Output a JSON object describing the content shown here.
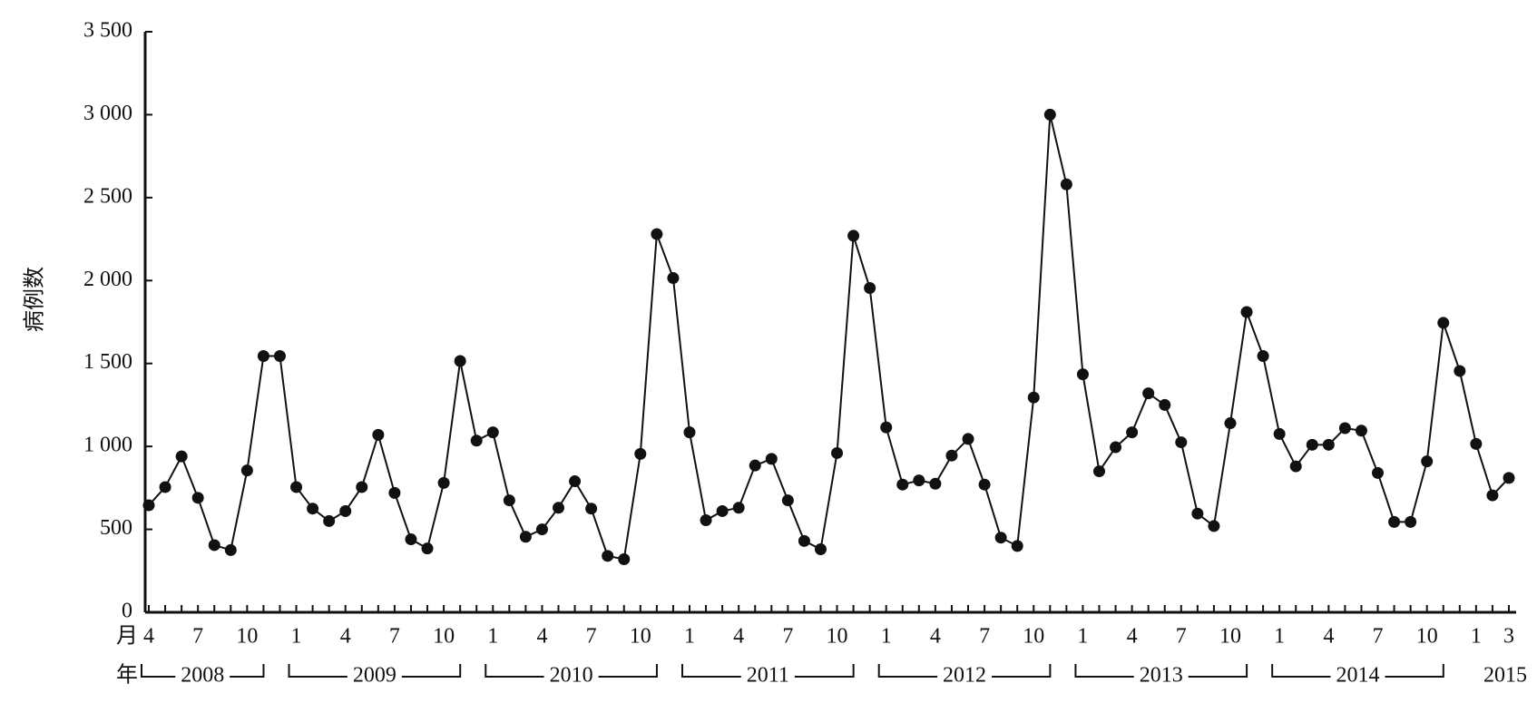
{
  "chart_data": {
    "type": "line",
    "y_label": "病例数",
    "x_month_label": "月",
    "x_year_label": "年",
    "categories": [
      4,
      null,
      null,
      7,
      null,
      null,
      10,
      null,
      null,
      1,
      null,
      null,
      4,
      null,
      null,
      7,
      null,
      null,
      10,
      null,
      null,
      1,
      null,
      null,
      4,
      null,
      null,
      7,
      null,
      null,
      10,
      null,
      null,
      1,
      null,
      null,
      4,
      null,
      null,
      7,
      null,
      null,
      10,
      null,
      null,
      1,
      null,
      null,
      4,
      null,
      null,
      7,
      null,
      null,
      10,
      null,
      null,
      1,
      null,
      null,
      4,
      null,
      null,
      7,
      null,
      null,
      10,
      null,
      null,
      1,
      null,
      null,
      4,
      null,
      null,
      7,
      null,
      null,
      10,
      null,
      null,
      1,
      null,
      3
    ],
    "years": [
      "2008",
      "2009",
      "2010",
      "2011",
      "2012",
      "2013",
      "2014",
      "2015"
    ],
    "series": [
      {
        "name": "病例数",
        "color": "#111111",
        "values": [
          645,
          755,
          940,
          690,
          405,
          375,
          855,
          1545,
          1545,
          755,
          625,
          550,
          610,
          755,
          1070,
          720,
          440,
          385,
          780,
          1515,
          1035,
          1085,
          675,
          455,
          500,
          630,
          790,
          625,
          340,
          320,
          955,
          2280,
          2015,
          1085,
          555,
          610,
          630,
          885,
          925,
          675,
          430,
          380,
          960,
          2270,
          1955,
          1115,
          770,
          795,
          775,
          945,
          1045,
          770,
          450,
          400,
          1295,
          3000,
          2580,
          1435,
          850,
          995,
          1085,
          1320,
          1250,
          1025,
          595,
          520,
          1140,
          1810,
          1545,
          1075,
          880,
          1010,
          1010,
          1110,
          1095,
          840,
          545,
          545,
          910,
          1745,
          1455,
          1015,
          705,
          810
        ]
      }
    ],
    "ylim": [
      0,
      3500
    ],
    "yticks": [
      0,
      500,
      {
        "value": 1000,
        "label": "1 000"
      },
      {
        "value": 1500,
        "label": "1 500"
      },
      {
        "value": 2000,
        "label": "2 000"
      },
      {
        "value": 2500,
        "label": "2 500"
      },
      {
        "value": 3000,
        "label": "3 000"
      },
      {
        "value": 3500,
        "label": "3 500"
      }
    ],
    "grid": false
  }
}
